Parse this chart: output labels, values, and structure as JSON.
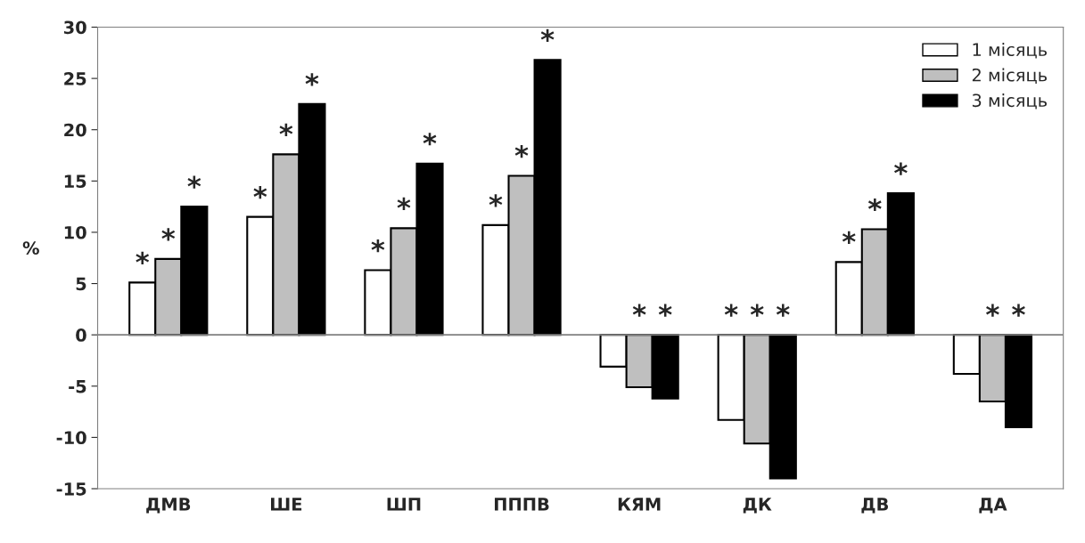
{
  "chart_data": {
    "type": "bar",
    "ylabel": "%",
    "categories": [
      "ДМВ",
      "ШЕ",
      "ШП",
      "ПППВ",
      "КЯМ",
      "ДК",
      "ДВ",
      "ДА"
    ],
    "series": [
      {
        "name": "1 місяць",
        "color": "#ffffff",
        "values": [
          5.1,
          11.5,
          6.3,
          10.7,
          -3.1,
          -8.3,
          7.1,
          -3.8
        ],
        "value_labels": [
          "*",
          "*",
          "*",
          "*",
          null,
          "*",
          "*",
          null
        ]
      },
      {
        "name": "2 місяць",
        "color": "#bfbfbf",
        "values": [
          7.4,
          17.6,
          10.4,
          15.5,
          -5.1,
          -10.6,
          10.3,
          -6.5
        ],
        "value_labels": [
          "*",
          "*",
          "*",
          "*",
          "*",
          "*",
          "*",
          "*"
        ]
      },
      {
        "name": "3 місяць",
        "color": "#000000",
        "values": [
          12.5,
          22.5,
          16.7,
          26.8,
          -6.2,
          -14.0,
          13.8,
          -9.0
        ],
        "value_labels": [
          "*",
          "*",
          "*",
          "*",
          "*",
          "*",
          "*",
          "*"
        ]
      }
    ],
    "ylim": [
      -15,
      30
    ],
    "yticks": [
      -15,
      -10,
      -5,
      0,
      5,
      10,
      15,
      20,
      25,
      30
    ],
    "ref_lines": [
      {
        "axis": "y",
        "value": 0,
        "color": "#808080"
      }
    ],
    "legend": "top right"
  }
}
